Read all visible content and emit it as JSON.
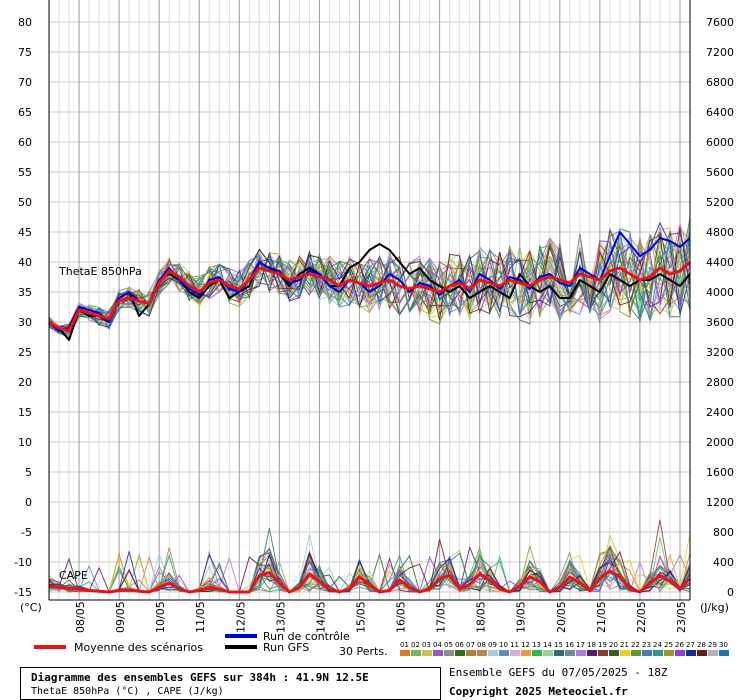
{
  "chart_data": {
    "type": "line",
    "title": "Diagramme des ensembles GEFS sur 384h : 41.9N 12.5E",
    "subtitle": "ThetaE 850hPa (°C) , CAPE (J/kg)",
    "left_axis": {
      "unit": "(°C)",
      "ticks": [
        80,
        75,
        70,
        65,
        60,
        55,
        50,
        45,
        40,
        35,
        30,
        25,
        20,
        15,
        10,
        5,
        0,
        -5,
        -10,
        -15
      ],
      "ylim": [
        -15,
        80
      ]
    },
    "right_axis": {
      "unit": "(J/kg)",
      "ticks": [
        7600,
        7200,
        6800,
        6400,
        6000,
        5600,
        5200,
        4800,
        4400,
        4000,
        3600,
        3200,
        2800,
        2400,
        2000,
        1600,
        1200,
        800,
        400,
        0
      ],
      "ylim": [
        0,
        7600
      ]
    },
    "x_dates": [
      "08/05",
      "09/05",
      "10/05",
      "11/05",
      "12/05",
      "13/05",
      "14/05",
      "15/05",
      "16/05",
      "17/05",
      "18/05",
      "19/05",
      "20/05",
      "21/05",
      "22/05",
      "23/05"
    ],
    "grid": true,
    "series_labels": [
      "ThetaE 850hPa",
      "CAPE"
    ],
    "mean_thetae": {
      "x": [
        0,
        6,
        12,
        18,
        24,
        30,
        36,
        42,
        48,
        54,
        60,
        66,
        72,
        78,
        84,
        90,
        96,
        102,
        108,
        114,
        120,
        126,
        132,
        138,
        144,
        150,
        156,
        162,
        168,
        174,
        180,
        186,
        192,
        198,
        204,
        210,
        216,
        222,
        228,
        234,
        240,
        246,
        252,
        258,
        264,
        270,
        276,
        282,
        288,
        294,
        300,
        306,
        312,
        318,
        324,
        330,
        336,
        342,
        348,
        354,
        360,
        366,
        372,
        378,
        384
      ],
      "values": [
        30,
        29,
        28.5,
        32,
        31.5,
        31,
        30.5,
        33.5,
        34,
        33.5,
        33,
        36.5,
        38.5,
        37.5,
        36,
        35,
        36.5,
        37,
        36,
        35.5,
        37,
        39,
        38.5,
        38,
        37,
        37.5,
        38,
        37.5,
        37,
        36,
        37,
        36.5,
        36,
        36.5,
        37,
        36,
        35.5,
        36,
        35.5,
        35,
        36,
        36.5,
        35.5,
        37,
        36.5,
        36,
        37,
        36.5,
        36,
        37,
        37.5,
        37,
        36.5,
        38,
        37.5,
        37,
        38.5,
        39,
        38,
        37,
        37.5,
        39,
        38,
        38.5,
        40
      ]
    },
    "control_thetae": {
      "x": [
        0,
        6,
        12,
        18,
        24,
        30,
        36,
        42,
        48,
        54,
        60,
        66,
        72,
        78,
        84,
        90,
        96,
        102,
        108,
        114,
        120,
        126,
        132,
        138,
        144,
        150,
        156,
        162,
        168,
        174,
        180,
        186,
        192,
        198,
        204,
        210,
        216,
        222,
        228,
        234,
        240,
        246,
        252,
        258,
        264,
        270,
        276,
        282,
        288,
        294,
        300,
        306,
        312,
        318,
        324,
        330,
        336,
        342,
        348,
        354,
        360,
        366,
        372,
        378,
        384
      ],
      "values": [
        30,
        28.5,
        29,
        32.5,
        32,
        31.5,
        30,
        34,
        35,
        33.5,
        33,
        37,
        39,
        37,
        35.5,
        34.5,
        37,
        37.5,
        35.5,
        35,
        37,
        40,
        39,
        38.5,
        36.5,
        37,
        38.5,
        38,
        36,
        35,
        37,
        36.5,
        35,
        36,
        38,
        37,
        35,
        36.5,
        36,
        34.5,
        36,
        37,
        35,
        38,
        37,
        35.5,
        37.5,
        37,
        35.5,
        37.5,
        38,
        36.5,
        36,
        39,
        38,
        37,
        41,
        45,
        43,
        41,
        42,
        44,
        43.5,
        42.5,
        44
      ]
    },
    "gfs_thetae": {
      "x": [
        0,
        6,
        12,
        18,
        24,
        30,
        36,
        42,
        48,
        54,
        60,
        66,
        72,
        78,
        84,
        90,
        96,
        102,
        108,
        114,
        120,
        126,
        132,
        138,
        144,
        150,
        156,
        162,
        168,
        174,
        180,
        186,
        192,
        198,
        204,
        210,
        216,
        222,
        228,
        234,
        240,
        246,
        252,
        258,
        264,
        270,
        276,
        282,
        288,
        294,
        300,
        306,
        312,
        318,
        324,
        330,
        336,
        342,
        348,
        354,
        360,
        366,
        372,
        378,
        384
      ],
      "values": [
        30,
        29,
        27,
        32,
        31,
        31,
        30,
        34,
        35,
        31,
        33,
        37,
        38,
        37,
        35,
        34,
        36,
        37,
        34,
        35,
        36,
        40,
        39,
        38,
        36,
        38,
        39,
        38,
        36,
        36,
        39,
        40,
        42,
        43,
        42,
        40,
        38,
        39,
        37,
        36,
        35,
        36,
        34,
        35,
        36,
        35,
        34,
        38,
        36,
        35,
        36,
        34,
        34,
        37,
        36,
        35,
        38,
        37,
        36,
        37,
        37,
        38,
        37,
        36,
        38
      ]
    },
    "mean_cape": {
      "x": [
        0,
        6,
        12,
        18,
        24,
        30,
        36,
        42,
        48,
        54,
        60,
        66,
        72,
        78,
        84,
        90,
        96,
        102,
        108,
        114,
        120,
        126,
        132,
        138,
        144,
        150,
        156,
        162,
        168,
        174,
        180,
        186,
        192,
        198,
        204,
        210,
        216,
        222,
        228,
        234,
        240,
        246,
        252,
        258,
        264,
        270,
        276,
        282,
        288,
        294,
        300,
        306,
        312,
        318,
        324,
        330,
        336,
        342,
        348,
        354,
        360,
        366,
        372,
        378,
        384
      ],
      "values": [
        80,
        60,
        50,
        40,
        20,
        10,
        0,
        20,
        30,
        10,
        0,
        60,
        120,
        40,
        0,
        20,
        60,
        40,
        0,
        0,
        0,
        220,
        260,
        120,
        0,
        60,
        240,
        140,
        40,
        0,
        40,
        200,
        100,
        0,
        20,
        160,
        60,
        0,
        40,
        180,
        220,
        40,
        100,
        240,
        160,
        40,
        0,
        80,
        200,
        140,
        0,
        60,
        200,
        120,
        20,
        180,
        280,
        200,
        40,
        0,
        120,
        220,
        140,
        40,
        180
      ]
    }
  },
  "legend": {
    "mean_label": "Moyenne des scénarios",
    "control_label": "Run de contrôle",
    "gfs_label": "Run GFS",
    "perts_label": "30 Perts.",
    "mean_color": "#ee1111",
    "control_color": "#0000dd",
    "gfs_color": "#000000",
    "pert_ids": [
      "01",
      "02",
      "03",
      "04",
      "05",
      "06",
      "07",
      "08",
      "09",
      "10",
      "11",
      "12",
      "13",
      "14",
      "15",
      "16",
      "17",
      "18",
      "19",
      "20",
      "21",
      "22",
      "23",
      "24",
      "25",
      "26",
      "27",
      "28",
      "29",
      "30"
    ],
    "pert_colors": [
      "#e07b20",
      "#77b65e",
      "#cfc24a",
      "#9a56c9",
      "#8d8d8d",
      "#2e6f1f",
      "#b67d39",
      "#b98840",
      "#9ecde5",
      "#5e8fb6",
      "#e0a8d8",
      "#f09a40",
      "#2fbd4a",
      "#9ad0a0",
      "#2f6f6f",
      "#6a8a9a",
      "#b476e6",
      "#5a1a6a",
      "#8a3a2a",
      "#3a5a2a",
      "#e8d020",
      "#5a9a2a",
      "#4a7ab0",
      "#2a9a8a",
      "#9a9a2a",
      "#9a3ad8",
      "#1a2a9a",
      "#6a1a1a",
      "#b3b3b3",
      "#1a7ab0"
    ]
  },
  "info": {
    "title_line": "Diagramme des ensembles GEFS sur 384h : 41.9N 12.5E",
    "subtitle_line": "ThetaE 850hPa (°C) , CAPE (J/kg)",
    "ensemble_run": "Ensemble GEFS du 07/05/2025 - 18Z",
    "copyright": "Copyright 2025 Meteociel.fr"
  }
}
